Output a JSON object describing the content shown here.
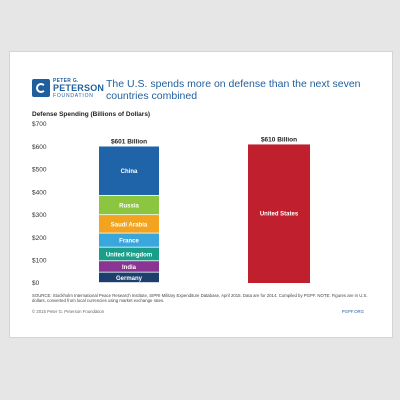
{
  "brand": {
    "line1": "PETER G.",
    "line2": "PETERSON",
    "line3": "FOUNDATION",
    "accent": "#1f5f9e"
  },
  "chart_data": {
    "type": "bar",
    "title": "The U.S. spends more on defense than the next seven countries combined",
    "ylabel": "Defense Spending (Billions of Dollars)",
    "ylim": [
      0,
      700
    ],
    "yticks": [
      "$0",
      "$100",
      "$200",
      "$300",
      "$400",
      "$500",
      "$600",
      "$700"
    ],
    "grid": false,
    "stacked_bar": {
      "total_label": "$601 Billion",
      "segments": [
        {
          "name": "Germany",
          "value": 46,
          "color": "#1c3f6e"
        },
        {
          "name": "India",
          "value": 50,
          "color": "#8a3591"
        },
        {
          "name": "United Kingdom",
          "value": 60,
          "color": "#1a9e8a"
        },
        {
          "name": "France",
          "value": 62,
          "color": "#3aa7dc"
        },
        {
          "name": "Saudi Arabia",
          "value": 81,
          "color": "#f2a31f"
        },
        {
          "name": "Russia",
          "value": 85,
          "color": "#8cc540"
        },
        {
          "name": "China",
          "value": 217,
          "color": "#1f64a8"
        }
      ]
    },
    "single_bar": {
      "name": "United States",
      "value": 610,
      "total_label": "$610 Billion",
      "color": "#c0202e"
    }
  },
  "note": "SOURCE: Stockholm International Peace Research Institute, SIPRI Military Expenditure Database, April 2015. Data are for 2014. Compiled by PGPF. NOTE: Figures are in U.S. dollars, converted from local currencies using market exchange rates.",
  "footer": {
    "left": "© 2015 Peter G. Peterson Foundation",
    "right": "PGPF.ORG"
  }
}
